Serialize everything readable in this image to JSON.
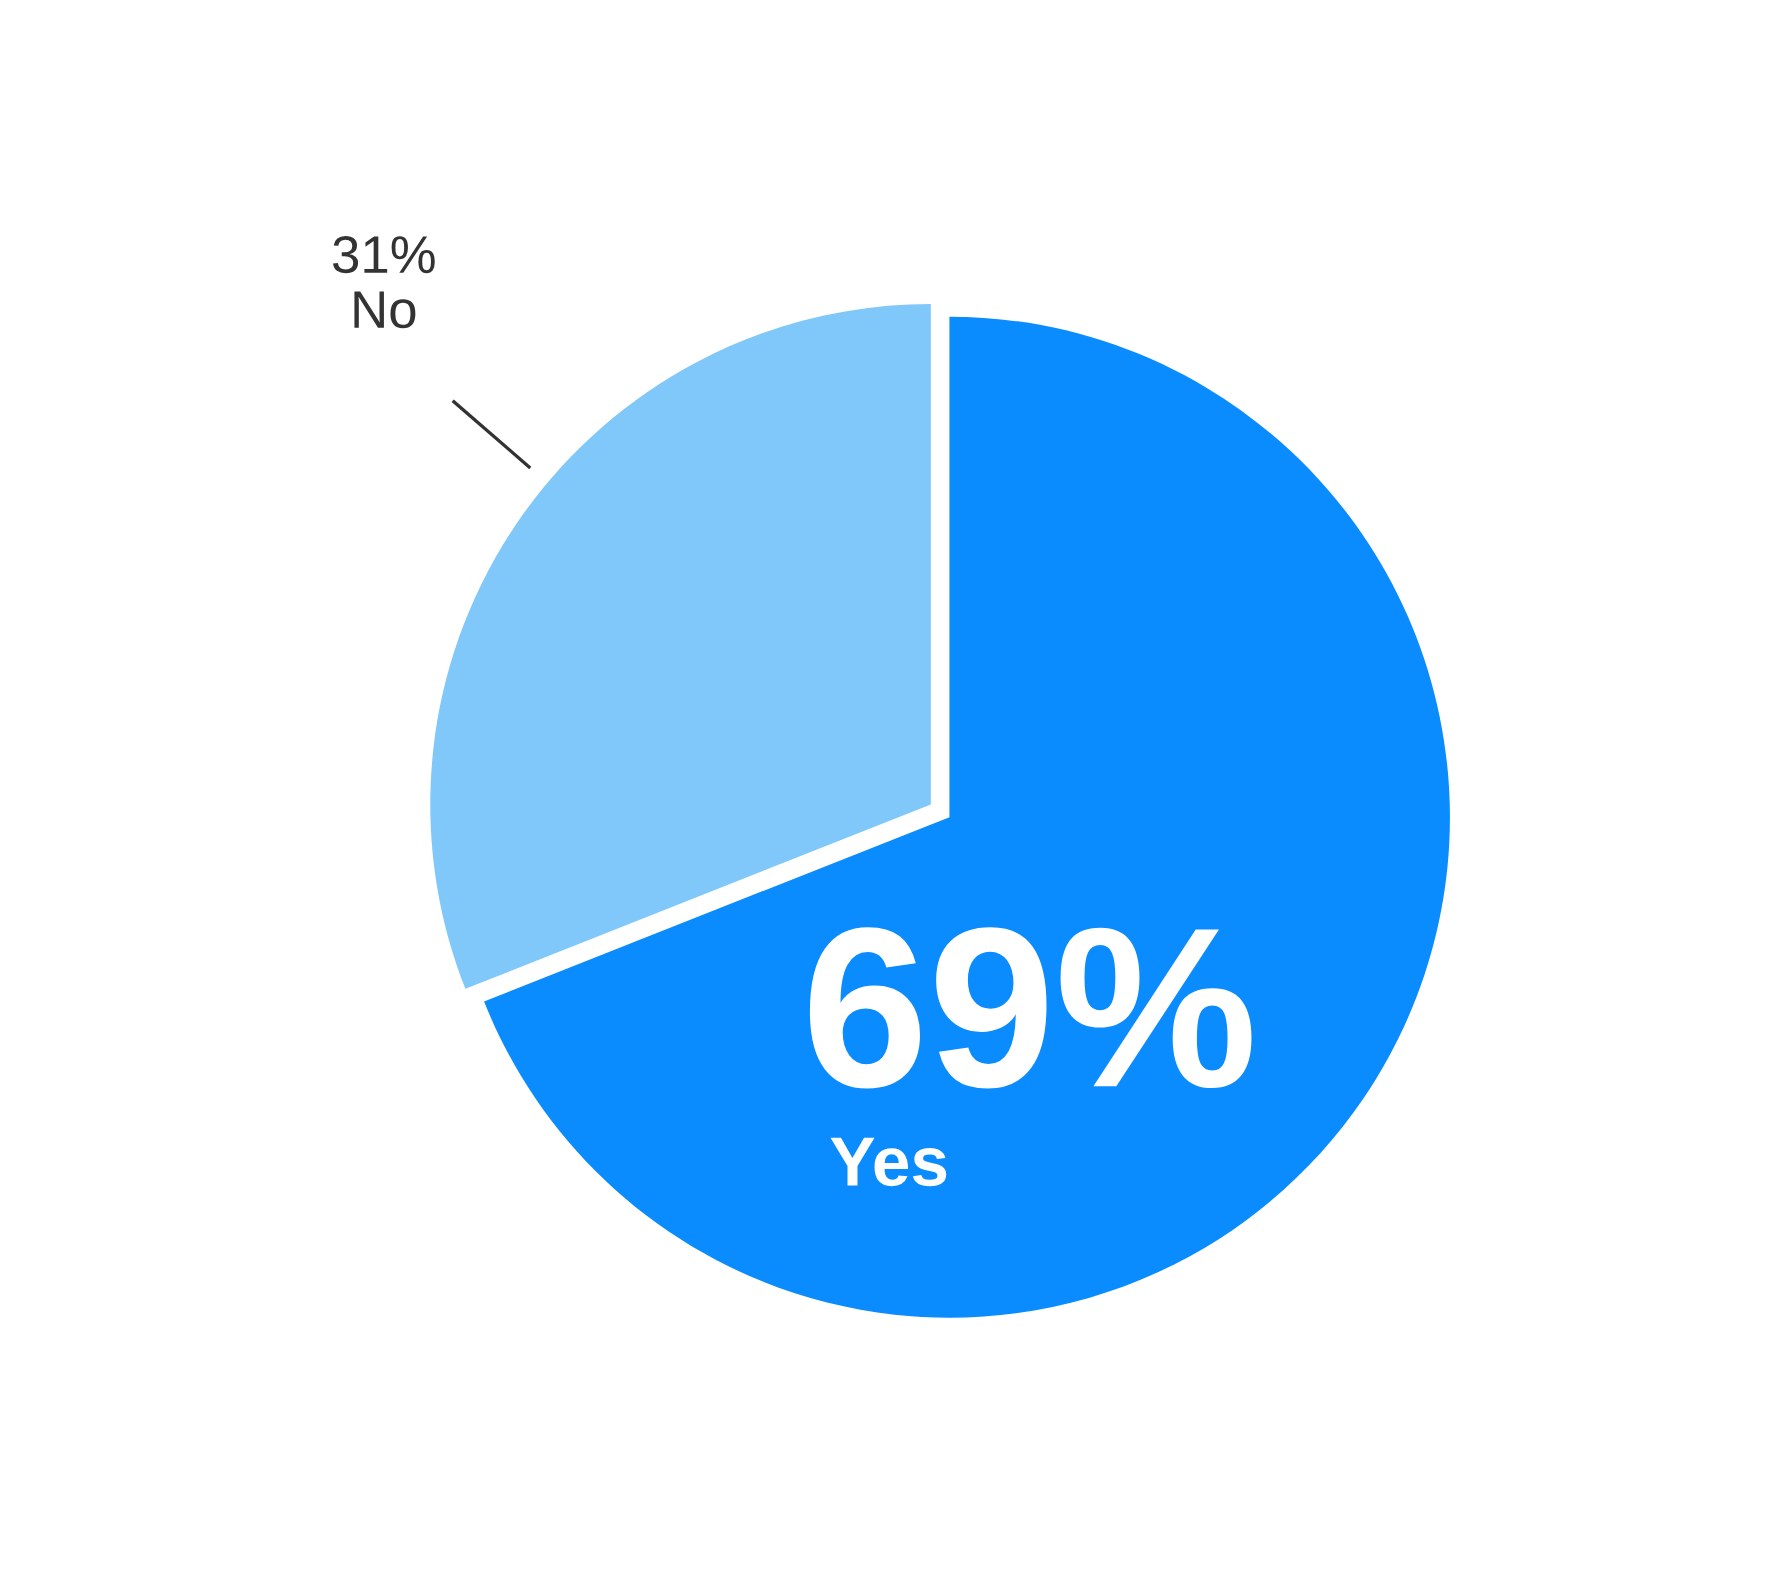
{
  "chart_data": {
    "type": "pie",
    "categories": [
      "Yes",
      "No"
    ],
    "values": [
      69,
      31
    ],
    "colors": [
      "#0a8cff",
      "#80c8fa"
    ],
    "value_labels": [
      "69%",
      "31%"
    ],
    "legend": false
  }
}
